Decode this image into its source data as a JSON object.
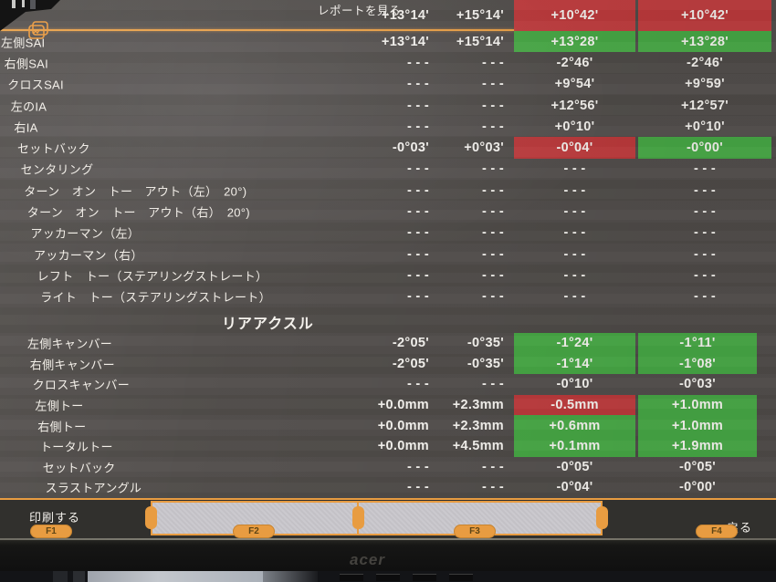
{
  "screen": {
    "top_bar": {
      "report_button": "レポートを見る",
      "icon": "report-pages"
    },
    "top_row": {
      "spec_min": "+13°14'",
      "spec_max": "+15°14'",
      "left": "+10°42'",
      "right": "+10°42'",
      "left_status": "fail",
      "right_status": "fail"
    },
    "front_axle": {
      "rows": [
        {
          "label": "左側SAI",
          "spec_min": "+13°14'",
          "spec_max": "+15°14'",
          "left": "+13°28'",
          "right": "+13°28'",
          "left_status": "pass",
          "right_status": "pass"
        },
        {
          "label": "右側SAI",
          "spec_min": "- - -",
          "spec_max": "- - -",
          "left": "-2°46'",
          "right": "-2°46'"
        },
        {
          "label": "クロスSAI",
          "spec_min": "- - -",
          "spec_max": "- - -",
          "left": "+9°54'",
          "right": "+9°59'"
        },
        {
          "label": "左のIA",
          "spec_min": "- - -",
          "spec_max": "- - -",
          "left": "+12°56'",
          "right": "+12°57'"
        },
        {
          "label": "右IA",
          "spec_min": "- - -",
          "spec_max": "- - -",
          "left": "+0°10'",
          "right": "+0°10'"
        },
        {
          "label": "セットバック",
          "spec_min": "-0°03'",
          "spec_max": "+0°03'",
          "left": "-0°04'",
          "right": "-0°00'",
          "left_status": "fail",
          "right_status": "pass"
        },
        {
          "label": "センタリング",
          "spec_min": "- - -",
          "spec_max": "- - -",
          "left": "- - -",
          "right": "- - -"
        },
        {
          "label": "ターン　オン　トー　アウト（左）　20°)",
          "spec_min": "- - -",
          "spec_max": "- - -",
          "left": "- - -",
          "right": "- - -"
        },
        {
          "label": "ターン　オン　トー　アウト（右）　20°)",
          "spec_min": "- - -",
          "spec_max": "- - -",
          "left": "- - -",
          "right": "- - -"
        },
        {
          "label": "アッカーマン（左）",
          "spec_min": "- - -",
          "spec_max": "- - -",
          "left": "- - -",
          "right": "- - -"
        },
        {
          "label": "アッカーマン（右）",
          "spec_min": "- - -",
          "spec_max": "- - -",
          "left": "- - -",
          "right": "- - -"
        },
        {
          "label": "レフト　トー（ステアリングストレート）",
          "spec_min": "- - -",
          "spec_max": "- - -",
          "left": "- - -",
          "right": "- - -"
        },
        {
          "label": "ライト　トー（ステアリングストレート）",
          "spec_min": "- - -",
          "spec_max": "- - -",
          "left": "- - -",
          "right": "- - -"
        }
      ]
    },
    "rear_axle": {
      "header": "リアアクスル",
      "rows": [
        {
          "label": "左側キャンバー",
          "spec_min": "-2°05'",
          "spec_max": "-0°35'",
          "left": "-1°24'",
          "right": "-1°11'",
          "left_status": "pass",
          "right_status": "pass"
        },
        {
          "label": "右側キャンバー",
          "spec_min": "-2°05'",
          "spec_max": "-0°35'",
          "left": "-1°14'",
          "right": "-1°08'",
          "left_status": "pass",
          "right_status": "pass"
        },
        {
          "label": "クロスキャンバー",
          "spec_min": "- - -",
          "spec_max": "- - -",
          "left": "-0°10'",
          "right": "-0°03'"
        },
        {
          "label": "左側トー",
          "spec_min": "+0.0mm",
          "spec_max": "+2.3mm",
          "left": "-0.5mm",
          "right": "+1.0mm",
          "left_status": "fail",
          "right_status": "pass"
        },
        {
          "label": "右側トー",
          "spec_min": "+0.0mm",
          "spec_max": "+2.3mm",
          "left": "+0.6mm",
          "right": "+1.0mm",
          "left_status": "pass",
          "right_status": "pass"
        },
        {
          "label": "トータルトー",
          "spec_min": "+0.0mm",
          "spec_max": "+4.5mm",
          "left": "+0.1mm",
          "right": "+1.9mm",
          "left_status": "pass",
          "right_status": "pass"
        },
        {
          "label": "セットバック",
          "spec_min": "- - -",
          "spec_max": "- - -",
          "left": "-0°05'",
          "right": "-0°05'"
        },
        {
          "label": "スラストアングル",
          "spec_min": "- - -",
          "spec_max": "- - -",
          "left": "-0°04'",
          "right": "-0°00'"
        }
      ]
    },
    "function_bar": {
      "f1": {
        "label": "印刷する",
        "key": "F1"
      },
      "f2": {
        "label": "",
        "key": "F2"
      },
      "f3": {
        "label": "",
        "key": "F3"
      },
      "f4": {
        "label": "戻る",
        "key": "F4"
      }
    },
    "colors": {
      "pass_green": "#47a845",
      "fail_red": "#bd3a3c",
      "accent_orange": "#e89c41",
      "panel_light": "#c9c7cc",
      "screen_gray": "#4f4b48"
    }
  },
  "monitor": {
    "brand": "acer"
  }
}
